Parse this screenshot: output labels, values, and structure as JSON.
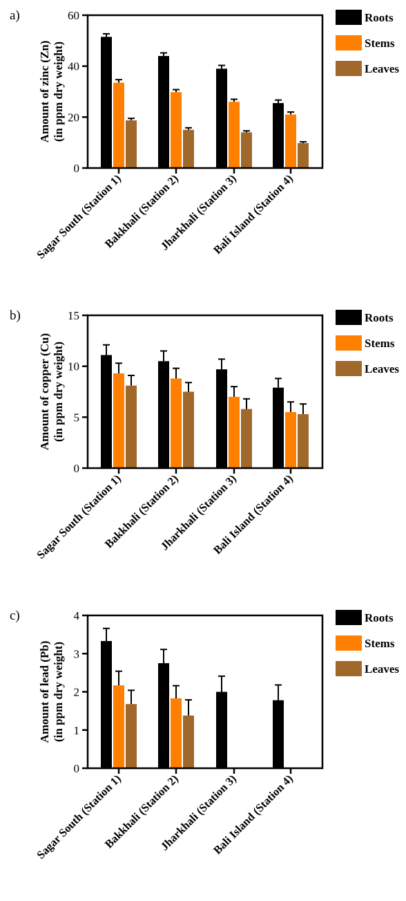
{
  "chart_data": [
    {
      "type": "bar",
      "panel_label": "a)",
      "ylabel_line1": "Amount of zinc (Zn)",
      "ylabel_line2": "(in ppm dry weight)",
      "ylim": [
        0,
        60
      ],
      "yticks": [
        0,
        20,
        40,
        60
      ],
      "categories": [
        "Sagar South (Station 1)",
        "Bakkhali (Station 2)",
        "Jharkhali (Station 3)",
        "Bali Island (Station 4)"
      ],
      "series": [
        {
          "name": "Roots",
          "color": "#000000",
          "values": [
            51.5,
            44,
            39,
            25.5
          ],
          "errors": [
            1.2,
            1.2,
            1.3,
            1.2
          ]
        },
        {
          "name": "Stems",
          "color": "#ff8000",
          "values": [
            33.5,
            29.8,
            26,
            21
          ],
          "errors": [
            1.2,
            1.0,
            1.0,
            1.0
          ]
        },
        {
          "name": "Leaves",
          "color": "#a0682a",
          "values": [
            18.7,
            15,
            14,
            9.8
          ],
          "errors": [
            0.8,
            0.8,
            0.6,
            0.5
          ]
        }
      ],
      "legend_position": "right",
      "grid": false
    },
    {
      "type": "bar",
      "panel_label": "b)",
      "ylabel_line1": "Amount of copper (Cu)",
      "ylabel_line2": "(in ppm dry weight)",
      "ylim": [
        0,
        15
      ],
      "yticks": [
        0,
        5,
        10,
        15
      ],
      "categories": [
        "Sagar South (Station 1)",
        "Bakkhali (Station 2)",
        "Jharkhali (Station 3)",
        "Bali Island (Station 4)"
      ],
      "series": [
        {
          "name": "Roots",
          "color": "#000000",
          "values": [
            11.1,
            10.5,
            9.7,
            7.9
          ],
          "errors": [
            1.0,
            1.0,
            1.0,
            0.9
          ]
        },
        {
          "name": "Stems",
          "color": "#ff8000",
          "values": [
            9.3,
            8.8,
            7.0,
            5.5
          ],
          "errors": [
            1.0,
            1.0,
            1.0,
            1.0
          ]
        },
        {
          "name": "Leaves",
          "color": "#a0682a",
          "values": [
            8.1,
            7.5,
            5.8,
            5.3
          ],
          "errors": [
            1.0,
            0.9,
            1.0,
            1.0
          ]
        }
      ],
      "legend_position": "right",
      "grid": false
    },
    {
      "type": "bar",
      "panel_label": "c)",
      "ylabel_line1": "Amount of lead (Pb)",
      "ylabel_line2": "(in ppm dry weight)",
      "ylim": [
        0,
        4
      ],
      "yticks": [
        0,
        1,
        2,
        3,
        4
      ],
      "categories": [
        "Sagar South (Station 1)",
        "Bakkhali (Station 2)",
        "Jharkhali (Station 3)",
        "Bali Island (Station 4)"
      ],
      "series": [
        {
          "name": "Roots",
          "color": "#000000",
          "values": [
            3.33,
            2.75,
            2.0,
            1.78
          ],
          "errors": [
            0.33,
            0.36,
            0.41,
            0.4
          ]
        },
        {
          "name": "Stems",
          "color": "#ff8000",
          "values": [
            2.17,
            1.83,
            0,
            0
          ],
          "errors": [
            0.37,
            0.33,
            0,
            0
          ]
        },
        {
          "name": "Leaves",
          "color": "#a0682a",
          "values": [
            1.68,
            1.38,
            0,
            0
          ],
          "errors": [
            0.36,
            0.41,
            0,
            0
          ]
        }
      ],
      "legend_position": "right",
      "grid": false
    }
  ]
}
